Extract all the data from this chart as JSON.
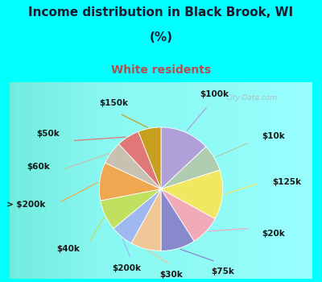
{
  "title_line1": "Income distribution in Black Brook, WI",
  "title_line2": "(%)",
  "subtitle": "White residents",
  "title_color": "#1a1a2e",
  "subtitle_color": "#b05050",
  "bg_outer": "#00ffff",
  "chart_bg": "#d4ead8",
  "labels": [
    "$100k",
    "$10k",
    "$125k",
    "$20k",
    "$75k",
    "$30k",
    "$200k",
    "$40k",
    "> $200k",
    "$60k",
    "$50k",
    "$150k"
  ],
  "values": [
    13,
    7,
    13,
    8,
    9,
    8,
    6,
    8,
    10,
    6,
    6,
    6
  ],
  "colors": [
    "#b0a0d8",
    "#b0ccb0",
    "#f0e860",
    "#f0aab8",
    "#8888cc",
    "#f0c898",
    "#a0b8f0",
    "#c0e060",
    "#f0a850",
    "#c8c0b0",
    "#e07878",
    "#c8a020"
  ],
  "figsize": [
    4.0,
    3.5
  ],
  "dpi": 100
}
